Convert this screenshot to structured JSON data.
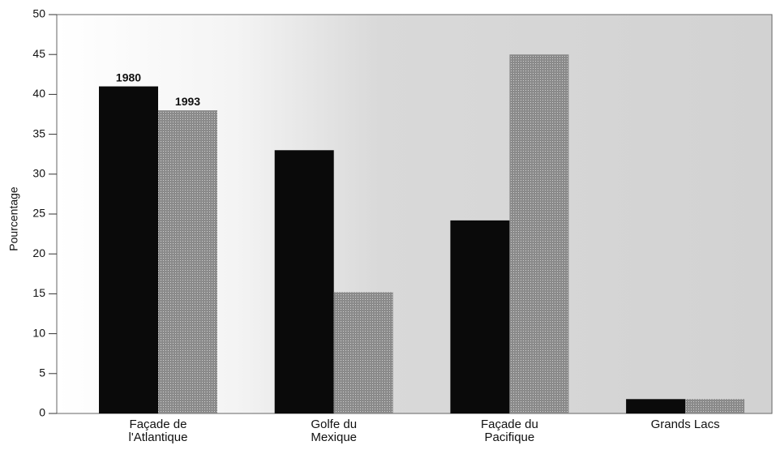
{
  "chart_data": {
    "type": "bar",
    "y_label": "Pourcentage",
    "categories": [
      "Façade de\nl'Atlantique",
      "Golfe du\nMexique",
      "Façade du\nPacifique",
      "Grands Lacs"
    ],
    "series": [
      {
        "name": "1980",
        "color": "#0a0a0a",
        "values": [
          41,
          33,
          24.2,
          1.8
        ]
      },
      {
        "name": "1993",
        "color": "#7a7a7a",
        "values": [
          38,
          15.2,
          45,
          1.8
        ]
      }
    ],
    "ylim": [
      0,
      50
    ],
    "yticks": [
      0,
      5,
      10,
      15,
      20,
      25,
      30,
      35,
      40,
      45,
      50
    ]
  }
}
